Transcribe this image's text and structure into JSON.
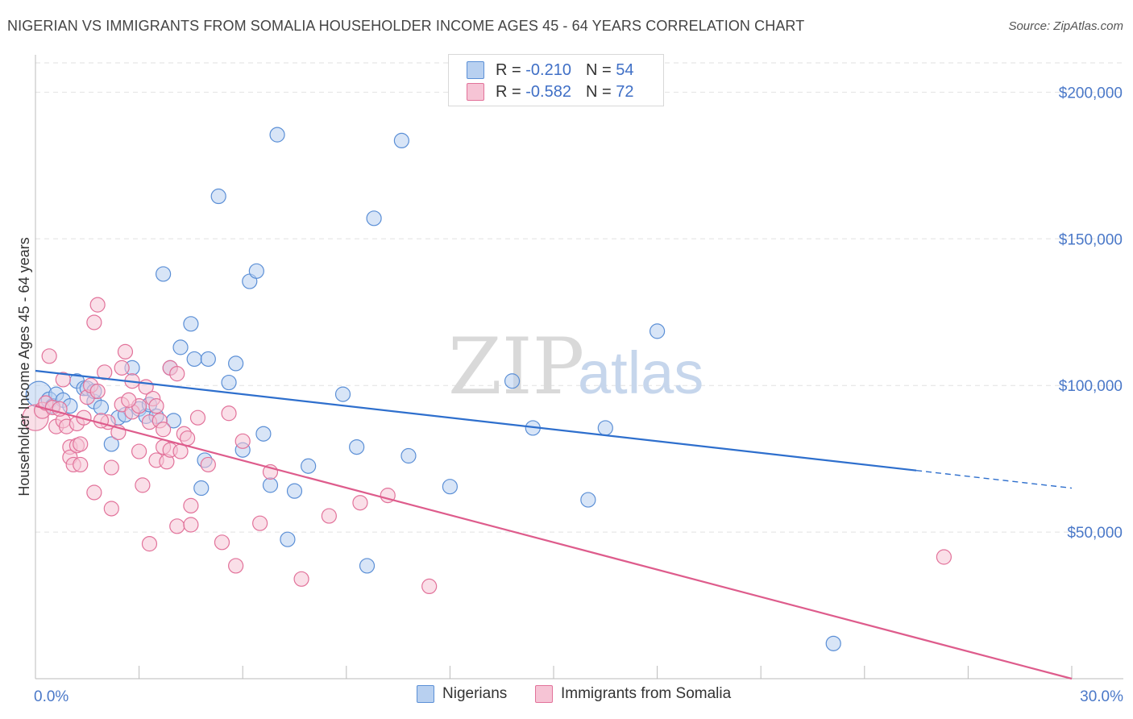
{
  "title": "NIGERIAN VS IMMIGRANTS FROM SOMALIA HOUSEHOLDER INCOME AGES 45 - 64 YEARS CORRELATION CHART",
  "source": "Source: ZipAtlas.com",
  "watermark": {
    "zip": "ZIP",
    "atlas": "atlas"
  },
  "legend": {
    "row1": {
      "r_label": "R =",
      "r_value": "-0.210",
      "n_label": "N =",
      "n_value": "54"
    },
    "row2": {
      "r_label": "R =",
      "r_value": "-0.582",
      "n_label": "N =",
      "n_value": "72"
    }
  },
  "bottom_legend": {
    "series1": "Nigerians",
    "series2": "Immigrants from Somalia"
  },
  "colors": {
    "blue": "#5b8fd6",
    "blue_fill": "#b8d0f0",
    "pink": "#e2729a",
    "pink_fill": "#f6c4d5",
    "blue_line": "#2e6fcd",
    "pink_line": "#de5c8c",
    "tick_label": "#4a78c8"
  },
  "chart_data": {
    "type": "scatter",
    "title": "NIGERIAN VS IMMIGRANTS FROM SOMALIA HOUSEHOLDER INCOME AGES 45 - 64 YEARS CORRELATION CHART",
    "xlabel": "",
    "ylabel": "Householder Income Ages 45 - 64 years",
    "xlim": [
      0,
      30
    ],
    "ylim": [
      0,
      210000
    ],
    "x_tick_labels": [
      "0.0%",
      "30.0%"
    ],
    "y_ticks": [
      50000,
      100000,
      150000,
      200000
    ],
    "y_tick_labels": [
      "$50,000",
      "$100,000",
      "$150,000",
      "$200,000"
    ],
    "grid": true,
    "legend_position": "top-center",
    "series": [
      {
        "name": "Nigerians",
        "r": -0.21,
        "n": 54,
        "trend": {
          "x0": 0,
          "y0": 105000,
          "x1": 30,
          "y1": 65000,
          "solid_until": 25.5
        },
        "points": [
          [
            0.1,
            97000,
            16
          ],
          [
            0.4,
            95000,
            10
          ],
          [
            0.5,
            93000,
            9
          ],
          [
            0.6,
            97000,
            9
          ],
          [
            0.8,
            95000,
            9
          ],
          [
            1.0,
            93000,
            9
          ],
          [
            1.2,
            101500,
            9
          ],
          [
            1.4,
            99000,
            9
          ],
          [
            1.5,
            99000,
            9
          ],
          [
            1.7,
            94500,
            9
          ],
          [
            1.9,
            92500,
            9
          ],
          [
            2.2,
            80000,
            9
          ],
          [
            2.4,
            89000,
            9
          ],
          [
            2.6,
            90000,
            9
          ],
          [
            2.8,
            106000,
            9
          ],
          [
            3.0,
            92000,
            9
          ],
          [
            3.2,
            89500,
            9
          ],
          [
            3.3,
            93500,
            9
          ],
          [
            3.5,
            89500,
            9
          ],
          [
            3.7,
            138000,
            9
          ],
          [
            3.9,
            106000,
            9
          ],
          [
            4.0,
            88000,
            9
          ],
          [
            4.2,
            113000,
            9
          ],
          [
            4.5,
            121000,
            9
          ],
          [
            4.6,
            109000,
            9
          ],
          [
            4.8,
            65000,
            9
          ],
          [
            4.9,
            74500,
            9
          ],
          [
            5.0,
            109000,
            9
          ],
          [
            5.3,
            164500,
            9
          ],
          [
            5.6,
            101000,
            9
          ],
          [
            5.8,
            107500,
            9
          ],
          [
            6.0,
            78000,
            9
          ],
          [
            6.2,
            135500,
            9
          ],
          [
            6.4,
            139000,
            9
          ],
          [
            6.6,
            83500,
            9
          ],
          [
            6.8,
            66000,
            9
          ],
          [
            7.0,
            185500,
            9
          ],
          [
            7.3,
            47500,
            9
          ],
          [
            7.5,
            64000,
            9
          ],
          [
            7.9,
            72500,
            9
          ],
          [
            8.9,
            97000,
            9
          ],
          [
            9.3,
            79000,
            9
          ],
          [
            9.6,
            38500,
            9
          ],
          [
            9.8,
            157000,
            9
          ],
          [
            10.6,
            183500,
            9
          ],
          [
            10.8,
            76000,
            9
          ],
          [
            12.0,
            65500,
            9
          ],
          [
            13.8,
            101500,
            9
          ],
          [
            14.4,
            85500,
            9
          ],
          [
            16.0,
            61000,
            9
          ],
          [
            16.5,
            85500,
            9
          ],
          [
            18.0,
            118500,
            9
          ],
          [
            23.1,
            12000,
            9
          ],
          [
            1.7,
            98000,
            9
          ]
        ]
      },
      {
        "name": "Immigrants from Somalia",
        "r": -0.582,
        "n": 72,
        "trend": {
          "x0": 0,
          "y0": 93000,
          "x1": 30,
          "y1": 0
        },
        "points": [
          [
            0.0,
            89000,
            16
          ],
          [
            0.2,
            91500,
            10
          ],
          [
            0.3,
            94000,
            9
          ],
          [
            0.4,
            110000,
            9
          ],
          [
            0.5,
            92500,
            9
          ],
          [
            0.6,
            86000,
            9
          ],
          [
            0.8,
            102000,
            9
          ],
          [
            0.8,
            88000,
            9
          ],
          [
            0.9,
            86000,
            9
          ],
          [
            1.0,
            79000,
            9
          ],
          [
            1.0,
            75500,
            9
          ],
          [
            1.1,
            73000,
            9
          ],
          [
            1.2,
            87000,
            9
          ],
          [
            1.2,
            79500,
            9
          ],
          [
            1.3,
            73000,
            9
          ],
          [
            1.4,
            89000,
            9
          ],
          [
            1.5,
            96000,
            9
          ],
          [
            1.6,
            100000,
            9
          ],
          [
            1.7,
            63500,
            9
          ],
          [
            1.7,
            121500,
            9
          ],
          [
            1.8,
            98000,
            9
          ],
          [
            1.8,
            127500,
            9
          ],
          [
            2.0,
            104500,
            9
          ],
          [
            2.1,
            87500,
            9
          ],
          [
            2.2,
            72000,
            9
          ],
          [
            2.2,
            58000,
            9
          ],
          [
            2.4,
            84000,
            9
          ],
          [
            2.5,
            93500,
            9
          ],
          [
            2.5,
            106000,
            9
          ],
          [
            2.6,
            111500,
            9
          ],
          [
            2.8,
            101500,
            9
          ],
          [
            2.8,
            91000,
            9
          ],
          [
            3.0,
            77500,
            9
          ],
          [
            3.0,
            93000,
            9
          ],
          [
            3.1,
            66000,
            9
          ],
          [
            3.2,
            99500,
            9
          ],
          [
            3.3,
            87500,
            9
          ],
          [
            3.3,
            46000,
            9
          ],
          [
            3.4,
            95500,
            9
          ],
          [
            3.5,
            74500,
            9
          ],
          [
            3.6,
            88000,
            9
          ],
          [
            3.7,
            79000,
            9
          ],
          [
            3.7,
            85000,
            9
          ],
          [
            3.8,
            74000,
            9
          ],
          [
            3.9,
            106000,
            9
          ],
          [
            3.9,
            78000,
            9
          ],
          [
            4.1,
            104000,
            9
          ],
          [
            4.1,
            52000,
            9
          ],
          [
            4.2,
            77500,
            9
          ],
          [
            4.3,
            83500,
            9
          ],
          [
            4.5,
            59000,
            9
          ],
          [
            4.5,
            52500,
            9
          ],
          [
            4.7,
            89000,
            9
          ],
          [
            5.0,
            73000,
            9
          ],
          [
            5.4,
            46500,
            9
          ],
          [
            5.6,
            90500,
            9
          ],
          [
            5.8,
            38500,
            9
          ],
          [
            6.0,
            81000,
            9
          ],
          [
            6.5,
            53000,
            9
          ],
          [
            6.8,
            70500,
            9
          ],
          [
            7.7,
            34000,
            9
          ],
          [
            8.5,
            55500,
            9
          ],
          [
            9.4,
            60000,
            9
          ],
          [
            10.2,
            62500,
            9
          ],
          [
            11.4,
            31500,
            9
          ],
          [
            26.3,
            41500,
            9
          ],
          [
            1.3,
            80000,
            9
          ],
          [
            2.7,
            95000,
            9
          ],
          [
            3.5,
            93000,
            9
          ],
          [
            0.7,
            92000,
            9
          ],
          [
            4.4,
            82000,
            9
          ],
          [
            1.9,
            88000,
            9
          ]
        ]
      }
    ]
  }
}
